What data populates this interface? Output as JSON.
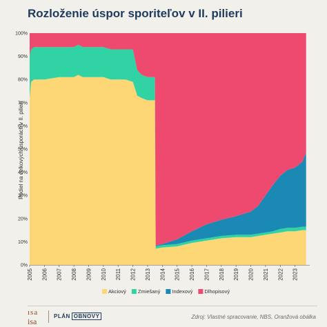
{
  "header": {
    "title": "Rozloženie úspor sporiteľov v II. pilieri"
  },
  "footer": {
    "source": "Zdroj: Vlastné spracovanie, NBS, Oranžová obálka",
    "logo_isa_top": "ısa",
    "logo_isa_bottom": "isa",
    "logo_plan": "PLÁN",
    "logo_obnovy": "OBNOVY"
  },
  "colors": {
    "akciovy": "#fdd775",
    "zmiesany": "#31d3a4",
    "indexovy": "#1a8ab5",
    "dlhopisovy": "#ee4a70",
    "background": "#f1f0eb"
  },
  "chart_data": {
    "type": "area",
    "stacked": true,
    "normalized_percent": true,
    "title": "Rozloženie úspor sporiteľov v II. pilieri",
    "xlabel": "",
    "ylabel": "Podiel na celkových úsporách v II. pilieri",
    "xlim": [
      2005,
      2024
    ],
    "ylim": [
      0,
      100
    ],
    "xticks": [
      "2005",
      "2006",
      "2007",
      "2008",
      "2009",
      "2010",
      "2011",
      "2012",
      "2013",
      "2014",
      "2015",
      "2016",
      "2017",
      "2018",
      "2019",
      "2020",
      "2021",
      "2022",
      "2023"
    ],
    "yticks": [
      "0%",
      "10%",
      "20%",
      "30%",
      "40%",
      "50%",
      "60%",
      "70%",
      "80%",
      "90%",
      "100%"
    ],
    "grid": false,
    "legend": "bottom",
    "x": [
      2005.0,
      2005.1,
      2005.3,
      2006.0,
      2007.0,
      2007.5,
      2008.0,
      2008.3,
      2008.6,
      2009.0,
      2009.5,
      2010.0,
      2010.5,
      2011.0,
      2011.5,
      2012.0,
      2012.3,
      2012.6,
      2013.0,
      2013.3,
      2013.5,
      2013.55,
      2014.0,
      2015.0,
      2016.0,
      2017.0,
      2018.0,
      2019.0,
      2020.0,
      2020.5,
      2021.0,
      2021.5,
      2022.0,
      2022.5,
      2023.0,
      2023.5,
      2023.75
    ],
    "series": [
      {
        "name": "Akciový",
        "color_key": "akciovy",
        "values": [
          72,
          79,
          80,
          80,
          81,
          81,
          81,
          82,
          81,
          81,
          81,
          81,
          80,
          80,
          80,
          79,
          73,
          72,
          71,
          71,
          71,
          7,
          7.5,
          8,
          9.5,
          10.5,
          11.5,
          12,
          12,
          12.5,
          13,
          13.5,
          14,
          14.5,
          14.5,
          15,
          15
        ]
      },
      {
        "name": "Zmiešaný",
        "color_key": "zmiesany",
        "values": [
          18,
          14,
          14,
          14,
          13,
          13,
          13,
          13,
          13,
          13,
          13,
          13,
          13,
          13,
          13,
          14,
          11,
          10,
          10,
          10,
          10,
          1,
          1,
          1,
          1,
          1,
          1,
          1,
          1,
          1,
          1,
          1,
          1.5,
          1.5,
          1.5,
          1.5,
          1.5
        ]
      },
      {
        "name": "Indexový",
        "color_key": "indexovy",
        "values": [
          0,
          0,
          0,
          0,
          0,
          0,
          0,
          0,
          0,
          0,
          0,
          0,
          0,
          0,
          0,
          0,
          0,
          0,
          0,
          0,
          0,
          0.3,
          0.5,
          2,
          4,
          6,
          7,
          8,
          10,
          12,
          16,
          20,
          23,
          25,
          26,
          28,
          32
        ]
      },
      {
        "name": "Dlhopisový",
        "color_key": "dlhopisovy",
        "values": [
          10,
          7,
          6,
          6,
          6,
          6,
          6,
          5,
          6,
          6,
          6,
          6,
          7,
          7,
          7,
          7,
          16,
          18,
          19,
          19,
          19,
          91.7,
          91,
          89,
          85.5,
          82.5,
          80.5,
          79,
          77,
          74.5,
          70,
          65.5,
          61.5,
          59,
          58,
          55.5,
          51.5
        ]
      }
    ]
  }
}
